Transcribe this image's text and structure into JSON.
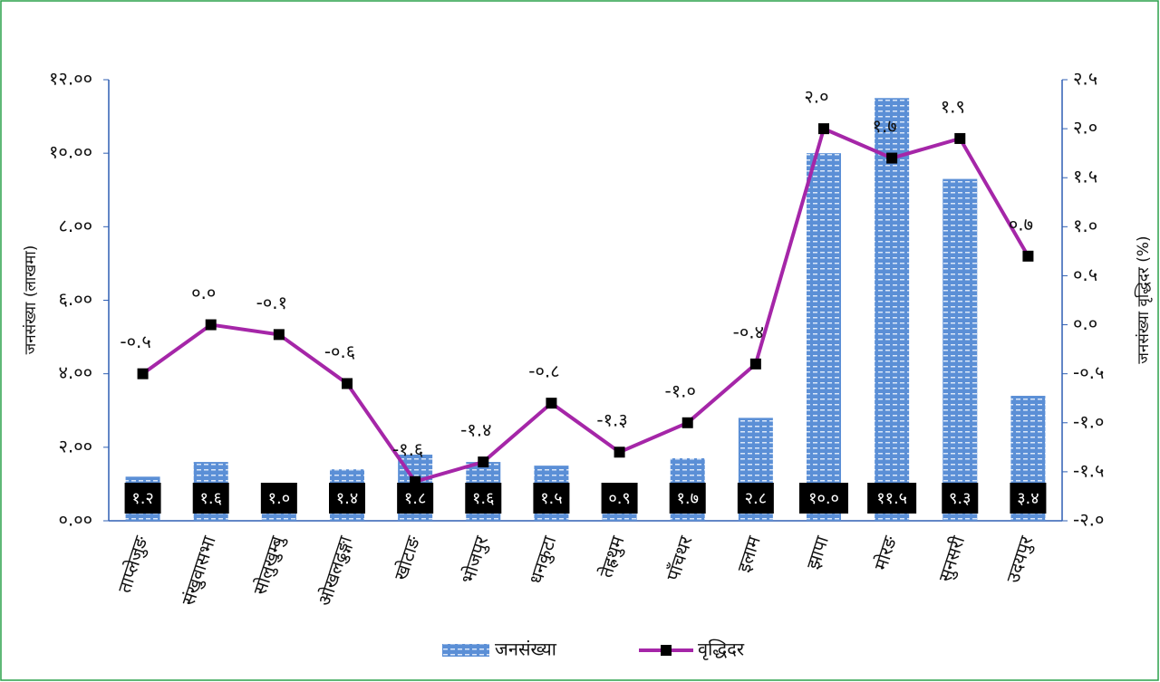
{
  "chart_data": {
    "type": "bar_line",
    "categories": [
      "ताप्लेजुङ",
      "संखुवासभा",
      "सोलुखुम्बु",
      "ओखलढुङ्गा",
      "खोटाङ",
      "भोजपुर",
      "धनकुटा",
      "तेह्रथुम",
      "पाँचथर",
      "इलाम",
      "झापा",
      "मोरङ",
      "सुनसरी",
      "उदयपुर"
    ],
    "series": [
      {
        "name": "जनसंख्या",
        "type": "bar",
        "color": "#5b8fd6",
        "values": [
          1.2,
          1.6,
          1.0,
          1.4,
          1.8,
          1.6,
          1.5,
          0.9,
          1.7,
          2.8,
          10.0,
          11.5,
          9.3,
          3.4
        ],
        "value_labels": [
          "१.२",
          "१.६",
          "१.०",
          "१.४",
          "१.८",
          "१.६",
          "१.५",
          "०.९",
          "१.७",
          "२.८",
          "१०.०",
          "११.५",
          "९.३",
          "३.४"
        ]
      },
      {
        "name": "वृद्धिदर",
        "type": "line",
        "axis": "y2",
        "color": "#a526a8",
        "values": [
          -0.5,
          0.0,
          -0.1,
          -0.6,
          -1.6,
          -1.4,
          -0.8,
          -1.3,
          -1.0,
          -0.4,
          2.0,
          1.7,
          1.9,
          0.7
        ],
        "value_labels": [
          "-०.५",
          "०.०",
          "-०.१",
          "-०.६",
          "-१.६",
          "-१.४",
          "-०.८",
          "-१.३",
          "-१.०",
          "-०.४",
          "२.०",
          "१.७",
          "१.९",
          "०.७"
        ]
      }
    ],
    "ylabel": "जनसंख्या (लाखमा)",
    "y2label": "जनसंख्या वृद्धिदर (%)",
    "ylim": [
      0,
      12
    ],
    "yticks": [
      {
        "value": 0,
        "label": "०.००"
      },
      {
        "value": 2,
        "label": "२.००"
      },
      {
        "value": 4,
        "label": "४.००"
      },
      {
        "value": 6,
        "label": "६.००"
      },
      {
        "value": 8,
        "label": "८.००"
      },
      {
        "value": 10,
        "label": "१०.००"
      },
      {
        "value": 12,
        "label": "१२.००"
      }
    ],
    "y2lim": [
      -2.0,
      2.5
    ],
    "y2ticks": [
      {
        "value": -2.0,
        "label": "-२.०"
      },
      {
        "value": -1.5,
        "label": "-१.५"
      },
      {
        "value": -1.0,
        "label": "-१.०"
      },
      {
        "value": -0.5,
        "label": "-०.५"
      },
      {
        "value": 0.0,
        "label": "०.०"
      },
      {
        "value": 0.5,
        "label": "०.५"
      },
      {
        "value": 1.0,
        "label": "१.०"
      },
      {
        "value": 1.5,
        "label": "१.५"
      },
      {
        "value": 2.0,
        "label": "२.०"
      },
      {
        "value": 2.5,
        "label": "२.५"
      }
    ],
    "legend": "bottom"
  }
}
